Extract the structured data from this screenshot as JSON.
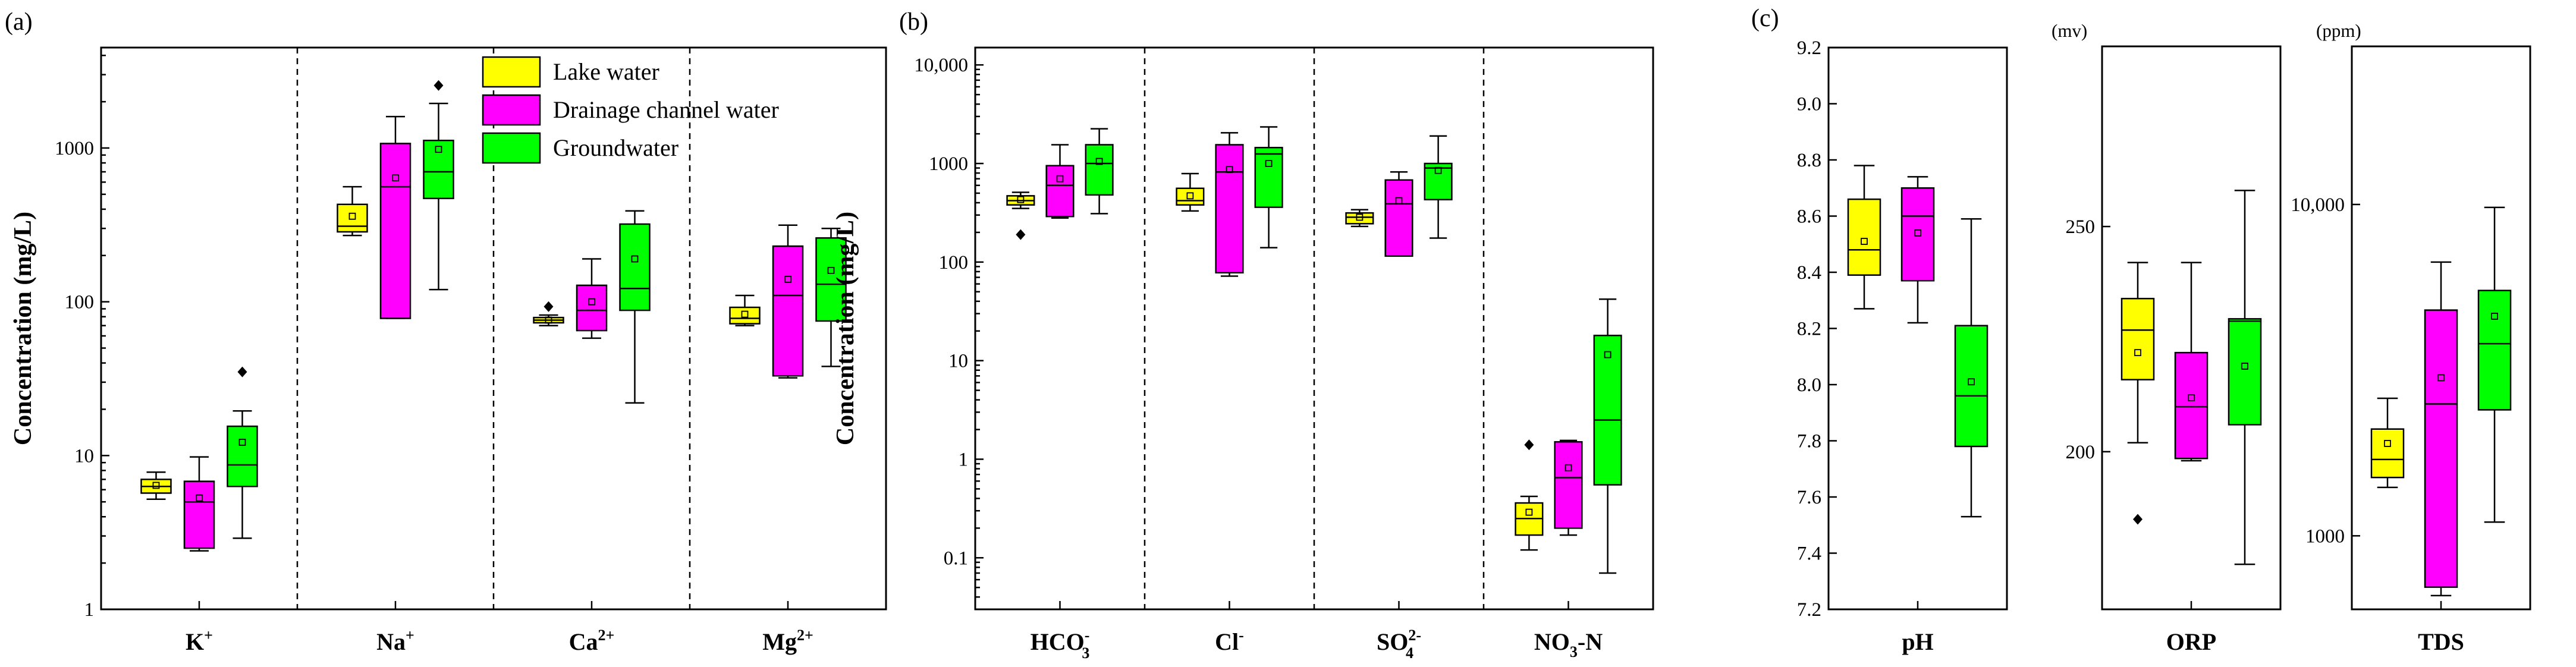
{
  "colors": {
    "lake": "#ffff00",
    "drain": "#ff00ff",
    "ground": "#00ff00"
  },
  "legend": [
    {
      "key": "lake",
      "label": "Lake water"
    },
    {
      "key": "drain",
      "label": "Drainage channel water"
    },
    {
      "key": "ground",
      "label": "Groundwater"
    }
  ],
  "chart_data": [
    {
      "type": "box",
      "panel": "(a)",
      "ylabel": "Concentration (mg/L)",
      "yscale": "log",
      "ylim": [
        1,
        4500
      ],
      "yticks": [
        1,
        10,
        100,
        1000
      ],
      "ytick_labels": [
        "1",
        "10",
        "100",
        "1000"
      ],
      "categories": [
        {
          "label": "K",
          "sup": "+",
          "sub": ""
        },
        {
          "label": "Na",
          "sup": "+",
          "sub": ""
        },
        {
          "label": "Ca",
          "sup": "2+",
          "sub": ""
        },
        {
          "label": "Mg",
          "sup": "2+",
          "sub": ""
        }
      ],
      "series": [
        {
          "name": "Lake water",
          "key": "lake",
          "stats": [
            {
              "min": 5.2,
              "q1": 5.7,
              "median": 6.3,
              "q3": 7.0,
              "max": 7.8,
              "mean": 6.4,
              "outliers": []
            },
            {
              "min": 270,
              "q1": 285,
              "median": 310,
              "q3": 430,
              "max": 560,
              "mean": 360,
              "outliers": []
            },
            {
              "min": 70,
              "q1": 73,
              "median": 76,
              "q3": 79,
              "max": 82,
              "mean": 76,
              "outliers": [
                93
              ]
            },
            {
              "min": 70,
              "q1": 72,
              "median": 78,
              "q3": 92,
              "max": 110,
              "mean": 83,
              "outliers": []
            }
          ]
        },
        {
          "name": "Drainage channel water",
          "key": "drain",
          "stats": [
            {
              "min": 2.4,
              "q1": 2.5,
              "median": 5.0,
              "q3": 6.8,
              "max": 9.8,
              "mean": 5.3,
              "outliers": []
            },
            {
              "min": 78,
              "q1": 78,
              "median": 560,
              "q3": 1070,
              "max": 1600,
              "mean": 640,
              "outliers": []
            },
            {
              "min": 58,
              "q1": 65,
              "median": 88,
              "q3": 128,
              "max": 190,
              "mean": 100,
              "outliers": []
            },
            {
              "min": 32,
              "q1": 33,
              "median": 110,
              "q3": 230,
              "max": 315,
              "mean": 140,
              "outliers": []
            }
          ]
        },
        {
          "name": "Groundwater",
          "key": "ground",
          "stats": [
            {
              "min": 2.9,
              "q1": 6.3,
              "median": 8.7,
              "q3": 15.5,
              "max": 19.5,
              "mean": 12.2,
              "outliers": [
                35
              ]
            },
            {
              "min": 120,
              "q1": 470,
              "median": 700,
              "q3": 1120,
              "max": 1950,
              "mean": 980,
              "outliers": [
                2550
              ]
            },
            {
              "min": 22,
              "q1": 88,
              "median": 122,
              "q3": 320,
              "max": 390,
              "mean": 190,
              "outliers": []
            },
            {
              "min": 38,
              "q1": 75,
              "median": 130,
              "q3": 260,
              "max": 300,
              "mean": 160,
              "outliers": []
            }
          ]
        }
      ]
    },
    {
      "type": "box",
      "panel": "(b)",
      "ylabel": "Concentration (mg/L)",
      "yscale": "log",
      "ylim": [
        0.03,
        15000
      ],
      "yticks": [
        0.1,
        1,
        10,
        100,
        1000,
        10000
      ],
      "ytick_labels": [
        "0.1",
        "1",
        "10",
        "100",
        "1000",
        "10,000"
      ],
      "categories": [
        {
          "label": "HCO",
          "sup": "-",
          "sub": "3"
        },
        {
          "label": "Cl",
          "sup": "-",
          "sub": ""
        },
        {
          "label": "SO",
          "sup": "2-",
          "sub": "4"
        },
        {
          "label": "NO",
          "sup": "",
          "sub": "3",
          "suffix": "-N"
        }
      ],
      "series": [
        {
          "name": "Lake water",
          "key": "lake",
          "stats": [
            {
              "min": 350,
              "q1": 380,
              "median": 420,
              "q3": 470,
              "max": 510,
              "mean": 430,
              "outliers": [
                190
              ]
            },
            {
              "min": 330,
              "q1": 380,
              "median": 420,
              "q3": 560,
              "max": 790,
              "mean": 470,
              "outliers": []
            },
            {
              "min": 230,
              "q1": 245,
              "median": 285,
              "q3": 315,
              "max": 340,
              "mean": 285,
              "outliers": []
            },
            {
              "min": 0.12,
              "q1": 0.17,
              "median": 0.25,
              "q3": 0.36,
              "max": 0.42,
              "mean": 0.29,
              "outliers": [
                1.4
              ]
            }
          ]
        },
        {
          "name": "Drainage channel water",
          "key": "drain",
          "stats": [
            {
              "min": 280,
              "q1": 290,
              "median": 600,
              "q3": 950,
              "max": 1550,
              "mean": 700,
              "outliers": []
            },
            {
              "min": 72,
              "q1": 78,
              "median": 820,
              "q3": 1550,
              "max": 2050,
              "mean": 870,
              "outliers": []
            },
            {
              "min": 115,
              "q1": 115,
              "median": 390,
              "q3": 680,
              "max": 820,
              "mean": 420,
              "outliers": []
            },
            {
              "min": 0.17,
              "q1": 0.2,
              "median": 0.65,
              "q3": 1.5,
              "max": 1.55,
              "mean": 0.82,
              "outliers": []
            }
          ]
        },
        {
          "name": "Groundwater",
          "key": "ground",
          "stats": [
            {
              "min": 310,
              "q1": 480,
              "median": 1000,
              "q3": 1550,
              "max": 2250,
              "mean": 1050,
              "outliers": []
            },
            {
              "min": 140,
              "q1": 360,
              "median": 1250,
              "q3": 1450,
              "max": 2350,
              "mean": 1000,
              "outliers": []
            },
            {
              "min": 175,
              "q1": 430,
              "median": 900,
              "q3": 1000,
              "max": 1900,
              "mean": 850,
              "outliers": []
            },
            {
              "min": 0.07,
              "q1": 0.55,
              "median": 2.5,
              "q3": 18,
              "max": 42,
              "mean": 11.5,
              "outliers": []
            }
          ]
        }
      ]
    },
    {
      "type": "box",
      "panel": "(c)",
      "ylabel": "",
      "unit": "",
      "yscale": "linear",
      "ylim": [
        7.2,
        9.2
      ],
      "yticks": [
        7.2,
        7.4,
        7.6,
        7.8,
        8.0,
        8.2,
        8.4,
        8.6,
        8.8,
        9.0,
        9.2
      ],
      "ytick_labels": [
        "7.2",
        "7.4",
        "7.6",
        "7.8",
        "8.0",
        "8.2",
        "8.4",
        "8.6",
        "8.8",
        "9.0",
        "9.2"
      ],
      "categories": [
        {
          "label": "pH",
          "sup": "",
          "sub": ""
        }
      ],
      "series": [
        {
          "name": "Lake water",
          "key": "lake",
          "stats": [
            {
              "min": 8.27,
              "q1": 8.39,
              "median": 8.48,
              "q3": 8.66,
              "max": 8.78,
              "mean": 8.51,
              "outliers": []
            }
          ]
        },
        {
          "name": "Drainage channel water",
          "key": "drain",
          "stats": [
            {
              "min": 8.22,
              "q1": 8.37,
              "median": 8.6,
              "q3": 8.7,
              "max": 8.74,
              "mean": 8.54,
              "outliers": []
            }
          ]
        },
        {
          "name": "Groundwater",
          "key": "ground",
          "stats": [
            {
              "min": 7.53,
              "q1": 7.78,
              "median": 7.96,
              "q3": 8.21,
              "max": 8.59,
              "mean": 8.01,
              "outliers": []
            }
          ]
        }
      ]
    },
    {
      "type": "box",
      "panel": "",
      "ylabel": "",
      "unit": "(mv)",
      "yscale": "linear",
      "ylim": [
        165,
        290
      ],
      "yticks": [
        200,
        250
      ],
      "ytick_labels": [
        "200",
        "250"
      ],
      "categories": [
        {
          "label": "ORP",
          "sup": "",
          "sub": ""
        }
      ],
      "series": [
        {
          "name": "Lake water",
          "key": "lake",
          "stats": [
            {
              "min": 202,
              "q1": 216,
              "median": 227,
              "q3": 234,
              "max": 242,
              "mean": 222,
              "outliers": [
                185
              ]
            }
          ]
        },
        {
          "name": "Drainage channel water",
          "key": "drain",
          "stats": [
            {
              "min": 198,
              "q1": 198.5,
              "median": 210,
              "q3": 222,
              "max": 242,
              "mean": 212,
              "outliers": []
            }
          ]
        },
        {
          "name": "Groundwater",
          "key": "ground",
          "stats": [
            {
              "min": 175,
              "q1": 206,
              "median": 229,
              "q3": 229.5,
              "max": 258,
              "mean": 219,
              "outliers": []
            }
          ]
        }
      ]
    },
    {
      "type": "box",
      "panel": "",
      "ylabel": "",
      "unit": "(ppm)",
      "yscale": "log",
      "ylim": [
        600,
        30000
      ],
      "yticks": [
        1000,
        10000
      ],
      "ytick_labels": [
        "1000",
        "10,000"
      ],
      "categories": [
        {
          "label": "TDS",
          "sup": "",
          "sub": ""
        }
      ],
      "series": [
        {
          "name": "Lake water",
          "key": "lake",
          "stats": [
            {
              "min": 1400,
              "q1": 1500,
              "median": 1700,
              "q3": 2100,
              "max": 2600,
              "mean": 1900,
              "outliers": []
            }
          ]
        },
        {
          "name": "Drainage channel water",
          "key": "drain",
          "stats": [
            {
              "min": 660,
              "q1": 700,
              "median": 2500,
              "q3": 4800,
              "max": 6700,
              "mean": 3000,
              "outliers": []
            }
          ]
        },
        {
          "name": "Groundwater",
          "key": "ground",
          "stats": [
            {
              "min": 1100,
              "q1": 2400,
              "median": 3800,
              "q3": 5500,
              "max": 9800,
              "mean": 4600,
              "outliers": []
            }
          ]
        }
      ]
    }
  ]
}
